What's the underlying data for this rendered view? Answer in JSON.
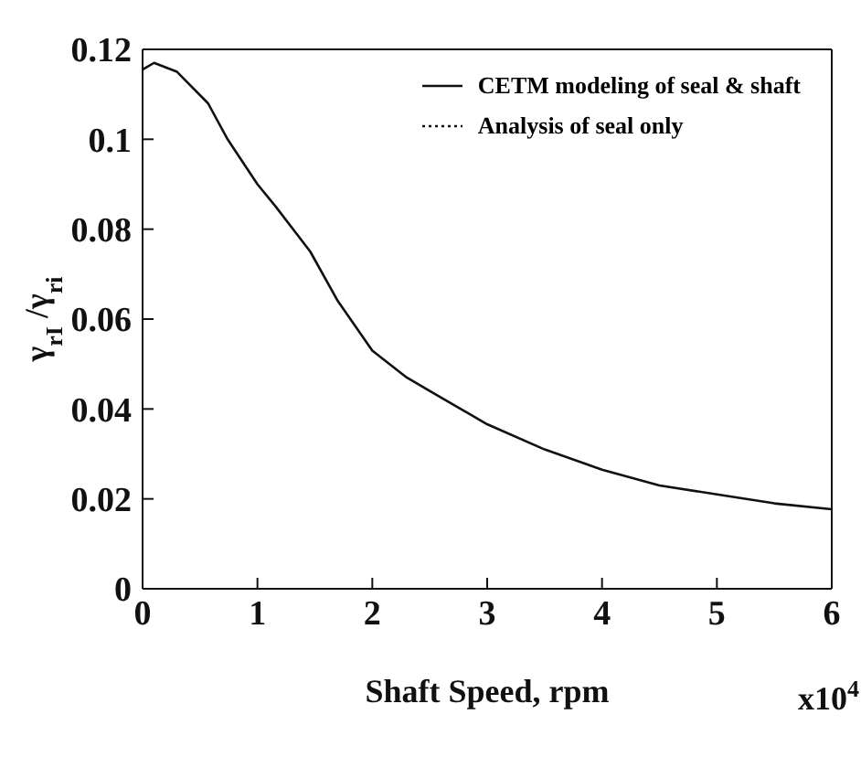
{
  "chart_data": {
    "type": "line",
    "xlabel": "Shaft Speed, rpm",
    "ylabel": "γ$_{rI}$ /γ$_{ri}$",
    "annotations": [
      "x10$^{4}$"
    ],
    "x": [
      0,
      0.1,
      0.3,
      0.57,
      0.74,
      1.0,
      1.16,
      1.46,
      1.7,
      2.0,
      2.3,
      2.5,
      3.0,
      3.5,
      4.0,
      4.5,
      5.0,
      5.5,
      6.0
    ],
    "series": [
      {
        "name": "CETM modeling of seal & shaft",
        "color": "#111111",
        "line_style": "solid",
        "values": [
          0.1155,
          0.117,
          0.115,
          0.108,
          0.1,
          0.09,
          0.085,
          0.075,
          0.064,
          0.053,
          0.047,
          0.044,
          0.0366,
          0.031,
          0.0265,
          0.023,
          0.021,
          0.019,
          0.0177
        ]
      },
      {
        "name": "Analysis of seal only",
        "color": "#111111",
        "line_style": "dotted",
        "values": [
          null,
          null,
          null,
          null,
          null,
          null,
          null,
          null,
          null,
          null,
          null,
          null,
          null,
          null,
          null,
          null,
          null,
          null,
          null
        ]
      }
    ],
    "xlim": [
      0,
      6
    ],
    "xticks": [
      0,
      1,
      2,
      3,
      4,
      5,
      6
    ],
    "ylim": [
      0,
      0.12
    ],
    "yticks": [
      0,
      0.02,
      0.04,
      0.06,
      0.08,
      0.1,
      0.12
    ],
    "grid": false,
    "legend": "top right",
    "marker": "none"
  }
}
